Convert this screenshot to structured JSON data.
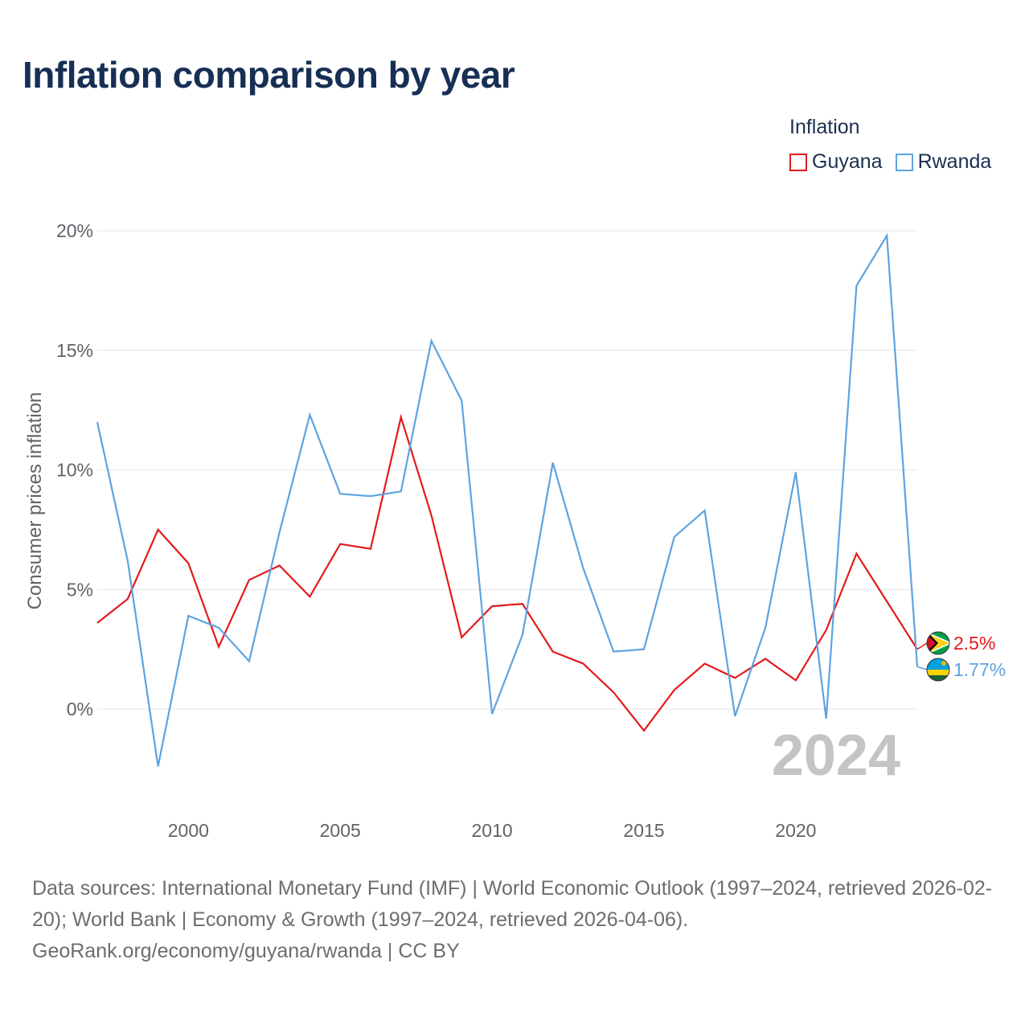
{
  "title": "Inflation comparison by year",
  "legend": {
    "title": "Inflation",
    "items": [
      {
        "label": "Guyana",
        "color": "#e31a1c"
      },
      {
        "label": "Rwanda",
        "color": "#5ea3e0"
      }
    ]
  },
  "chart_data": {
    "type": "line",
    "title": "Inflation comparison by year",
    "xlabel": "",
    "ylabel": "Consumer prices inflation",
    "xlim": [
      1997,
      2024
    ],
    "ylim": [
      -4,
      20
    ],
    "y_ticks": [
      0,
      5,
      10,
      15,
      20
    ],
    "y_tick_labels": [
      "0%",
      "5%",
      "10%",
      "15%",
      "20%"
    ],
    "x_ticks": [
      2000,
      2005,
      2010,
      2015,
      2020
    ],
    "x_tick_labels": [
      "2000",
      "2005",
      "2010",
      "2015",
      "2020"
    ],
    "grid": true,
    "year_label": "2024",
    "x": [
      1997,
      1998,
      1999,
      2000,
      2001,
      2002,
      2003,
      2004,
      2005,
      2006,
      2007,
      2008,
      2009,
      2010,
      2011,
      2012,
      2013,
      2014,
      2015,
      2016,
      2017,
      2018,
      2019,
      2020,
      2021,
      2022,
      2023,
      2024
    ],
    "series": [
      {
        "name": "Guyana",
        "color": "#e31a1c",
        "values": [
          3.6,
          4.6,
          7.5,
          6.1,
          2.6,
          5.4,
          6.0,
          4.7,
          6.9,
          6.7,
          12.2,
          8.1,
          3.0,
          4.3,
          4.4,
          2.4,
          1.9,
          0.7,
          -0.9,
          0.8,
          1.9,
          1.3,
          2.1,
          1.2,
          3.3,
          6.5,
          4.5,
          2.5
        ],
        "end_label": "2.5%"
      },
      {
        "name": "Rwanda",
        "color": "#5ea3e0",
        "values": [
          12.0,
          6.2,
          -2.4,
          3.9,
          3.4,
          2.0,
          7.4,
          12.3,
          9.0,
          8.9,
          9.1,
          15.4,
          12.9,
          -0.2,
          3.1,
          10.3,
          5.9,
          2.4,
          2.5,
          7.2,
          8.3,
          -0.3,
          3.4,
          9.9,
          -0.4,
          17.7,
          19.8,
          1.77
        ],
        "end_label": "1.77%"
      }
    ]
  },
  "sources": "Data sources: International Monetary Fund (IMF) | World Economic Outlook (1997–2024, retrieved 2026-02-20); World Bank | Economy & Growth (1997–2024, retrieved 2026-04-06).",
  "credit": "GeoRank.org/economy/guyana/rwanda | CC BY",
  "icons": [
    "guyana-flag-icon",
    "rwanda-flag-icon"
  ]
}
